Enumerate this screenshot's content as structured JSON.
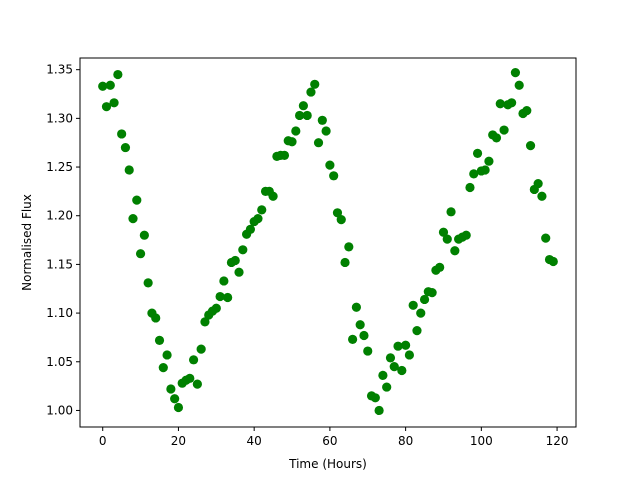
{
  "chart_data": {
    "type": "scatter",
    "xlabel": "Time (Hours)",
    "ylabel": "Normalised Flux",
    "xlim": [
      -6,
      125
    ],
    "ylim": [
      0.983,
      1.362
    ],
    "xticks": [
      0,
      20,
      40,
      60,
      80,
      100,
      120
    ],
    "xtick_labels": [
      "0",
      "20",
      "40",
      "60",
      "80",
      "100",
      "120"
    ],
    "yticks": [
      1.0,
      1.05,
      1.1,
      1.15,
      1.2,
      1.25,
      1.3,
      1.35
    ],
    "ytick_labels": [
      "1.00",
      "1.05",
      "1.10",
      "1.15",
      "1.20",
      "1.25",
      "1.30",
      "1.35"
    ],
    "grid": false,
    "marker_color": "#008000",
    "series": [
      {
        "x": [
          0,
          1,
          2,
          3,
          4,
          5,
          6,
          7,
          8,
          9,
          10,
          11,
          12,
          13,
          14,
          15,
          16,
          17,
          18,
          19,
          20,
          21,
          22,
          23,
          24,
          25,
          26,
          27,
          28,
          29,
          30,
          31,
          32,
          33,
          34,
          35,
          36,
          37,
          38,
          39,
          40,
          41,
          42,
          43,
          44,
          45,
          46,
          47,
          48,
          49,
          50,
          51,
          52,
          53,
          54,
          55,
          56,
          57,
          58,
          59,
          60,
          61,
          62,
          63,
          64,
          65,
          66,
          67,
          68,
          69,
          70,
          71,
          72,
          73,
          74,
          75,
          76,
          77,
          78,
          79,
          80,
          81,
          82,
          83,
          84,
          85,
          86,
          87,
          88,
          89,
          90,
          91,
          92,
          93,
          94,
          95,
          96,
          97,
          98,
          99,
          100,
          101,
          102,
          103,
          104,
          105,
          106,
          107,
          108,
          109,
          110,
          111,
          112,
          113,
          114,
          115,
          116,
          117,
          118,
          119
        ],
        "y": [
          1.333,
          1.312,
          1.334,
          1.316,
          1.345,
          1.284,
          1.27,
          1.247,
          1.197,
          1.216,
          1.161,
          1.18,
          1.131,
          1.1,
          1.095,
          1.072,
          1.044,
          1.057,
          1.022,
          1.012,
          1.003,
          1.028,
          1.031,
          1.033,
          1.052,
          1.027,
          1.063,
          1.091,
          1.098,
          1.102,
          1.105,
          1.117,
          1.133,
          1.116,
          1.152,
          1.154,
          1.142,
          1.165,
          1.181,
          1.186,
          1.194,
          1.197,
          1.206,
          1.225,
          1.225,
          1.22,
          1.261,
          1.262,
          1.262,
          1.277,
          1.276,
          1.287,
          1.303,
          1.313,
          1.303,
          1.327,
          1.335,
          1.275,
          1.298,
          1.287,
          1.252,
          1.241,
          1.203,
          1.196,
          1.152,
          1.168,
          1.073,
          1.106,
          1.088,
          1.077,
          1.061,
          1.015,
          1.013,
          1.0,
          1.036,
          1.024,
          1.054,
          1.045,
          1.066,
          1.041,
          1.067,
          1.057,
          1.108,
          1.082,
          1.1,
          1.114,
          1.122,
          1.121,
          1.144,
          1.147,
          1.183,
          1.176,
          1.204,
          1.164,
          1.176,
          1.178,
          1.18,
          1.229,
          1.243,
          1.264,
          1.246,
          1.247,
          1.256,
          1.283,
          1.28,
          1.315,
          1.288,
          1.314,
          1.316,
          1.347,
          1.334,
          1.305,
          1.308,
          1.272,
          1.227,
          1.233,
          1.22,
          1.177,
          1.155,
          1.153
        ]
      }
    ]
  }
}
